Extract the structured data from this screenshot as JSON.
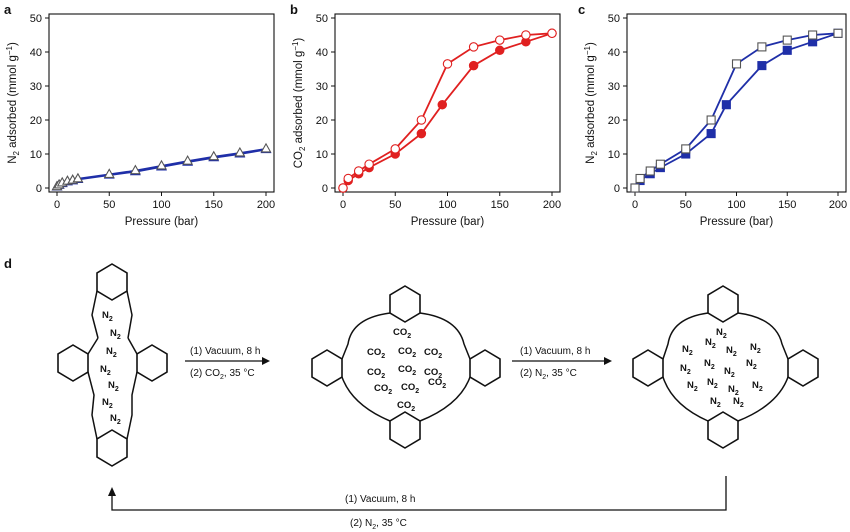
{
  "chart_data": [
    {
      "panel": "a",
      "type": "line",
      "xlabel": "Pressure (bar)",
      "ylabel": "N2 adsorbed (mmol g⁻¹)",
      "ylabel_base": "N",
      "ylabel_sub": "2",
      "ylabel_rest": " adsorbed (mmol g",
      "ylabel_sup": "−1",
      "ylabel_end": ")",
      "xlim": [
        0,
        200
      ],
      "ylim": [
        0,
        50
      ],
      "xticks": [
        0,
        50,
        100,
        150,
        200
      ],
      "yticks": [
        0,
        10,
        20,
        30,
        40,
        50
      ],
      "series": [
        {
          "name": "adsorption",
          "marker": "triangle",
          "filled": true,
          "color": "#1f2fa8",
          "x": [
            0,
            2,
            5,
            10,
            15,
            20,
            50,
            75,
            100,
            125,
            150,
            175,
            200
          ],
          "y": [
            0.3,
            0.8,
            1.3,
            1.8,
            2.1,
            2.5,
            3.8,
            4.8,
            6.2,
            7.6,
            8.9,
            10.0,
            11.3
          ]
        },
        {
          "name": "desorption",
          "marker": "triangle",
          "filled": false,
          "color": "#1f2fa8",
          "x": [
            0,
            2,
            5,
            10,
            15,
            20,
            50,
            75,
            100,
            125,
            150,
            175,
            200
          ],
          "y": [
            0.4,
            0.9,
            1.5,
            2.0,
            2.3,
            2.7,
            4.0,
            5.1,
            6.5,
            7.9,
            9.2,
            10.3,
            11.5
          ]
        }
      ]
    },
    {
      "panel": "b",
      "type": "line",
      "xlabel": "Pressure (bar)",
      "ylabel": "CO2 adsorbed (mmol g⁻¹)",
      "ylabel_base": "CO",
      "ylabel_sub": "2",
      "ylabel_rest": " adsorbed (mmol g",
      "ylabel_sup": "−1",
      "ylabel_end": ")",
      "xlim": [
        0,
        200
      ],
      "ylim": [
        0,
        50
      ],
      "xticks": [
        0,
        50,
        100,
        150,
        200
      ],
      "yticks": [
        0,
        10,
        20,
        30,
        40,
        50
      ],
      "series": [
        {
          "name": "adsorption",
          "marker": "circle",
          "filled": true,
          "color": "#e02020",
          "x": [
            0,
            5,
            15,
            25,
            50,
            75,
            95,
            125,
            150,
            175,
            200
          ],
          "y": [
            0,
            2.2,
            4.2,
            6.0,
            10.0,
            16.0,
            24.5,
            36.0,
            40.5,
            43.0,
            45.5
          ]
        },
        {
          "name": "desorption",
          "marker": "circle",
          "filled": false,
          "color": "#e02020",
          "x": [
            0,
            5,
            15,
            25,
            50,
            75,
            100,
            125,
            150,
            175,
            200
          ],
          "y": [
            0,
            2.8,
            5.0,
            7.0,
            11.5,
            20.0,
            36.5,
            41.5,
            43.5,
            45.0,
            45.5
          ]
        }
      ]
    },
    {
      "panel": "c",
      "type": "line",
      "xlabel": "Pressure (bar)",
      "ylabel": "N2 adsorbed (mmol g⁻¹)",
      "ylabel_base": "N",
      "ylabel_sub": "2",
      "ylabel_rest": " adsorbed (mmol g",
      "ylabel_sup": "−1",
      "ylabel_end": ")",
      "xlim": [
        0,
        200
      ],
      "ylim": [
        0,
        50
      ],
      "xticks": [
        0,
        50,
        100,
        150,
        200
      ],
      "yticks": [
        0,
        10,
        20,
        30,
        40,
        50
      ],
      "series": [
        {
          "name": "adsorption",
          "marker": "square",
          "filled": true,
          "color": "#1f2fa8",
          "x": [
            0,
            5,
            15,
            25,
            50,
            75,
            90,
            125,
            150,
            175,
            200
          ],
          "y": [
            0,
            2.2,
            4.2,
            6.0,
            10.0,
            16.0,
            24.5,
            36.0,
            40.5,
            43.0,
            45.5
          ]
        },
        {
          "name": "desorption",
          "marker": "square",
          "filled": false,
          "color": "#1f2fa8",
          "x": [
            0,
            5,
            15,
            25,
            50,
            75,
            100,
            125,
            150,
            175,
            200
          ],
          "y": [
            0,
            2.8,
            5.0,
            7.0,
            11.5,
            20.0,
            36.5,
            41.5,
            43.5,
            45.0,
            45.5
          ]
        }
      ]
    }
  ],
  "scheme": {
    "panel_letter": "d",
    "gas_n2": "N2",
    "gas_co2": "CO2",
    "gas_n2_base": "N",
    "gas_co2_base": "CO",
    "sub": "2",
    "arrow1_top": "(1) Vacuum, 8 h",
    "arrow1_bottom_pre": "(2) CO",
    "arrow1_bottom_sub": "2",
    "arrow1_bottom_post": ", 35 °C",
    "arrow2_top": "(1) Vacuum, 8 h",
    "arrow2_bottom_pre": "(2) N",
    "arrow2_bottom_sub": "2",
    "arrow2_bottom_post": ", 35 °C",
    "return_top": "(1) Vacuum, 8 h",
    "return_bottom_pre": "(2) N",
    "return_bottom_sub": "2",
    "return_bottom_post": ", 35 °C",
    "colors": {
      "n2": "#2020a8",
      "co2": "#e02020"
    }
  }
}
